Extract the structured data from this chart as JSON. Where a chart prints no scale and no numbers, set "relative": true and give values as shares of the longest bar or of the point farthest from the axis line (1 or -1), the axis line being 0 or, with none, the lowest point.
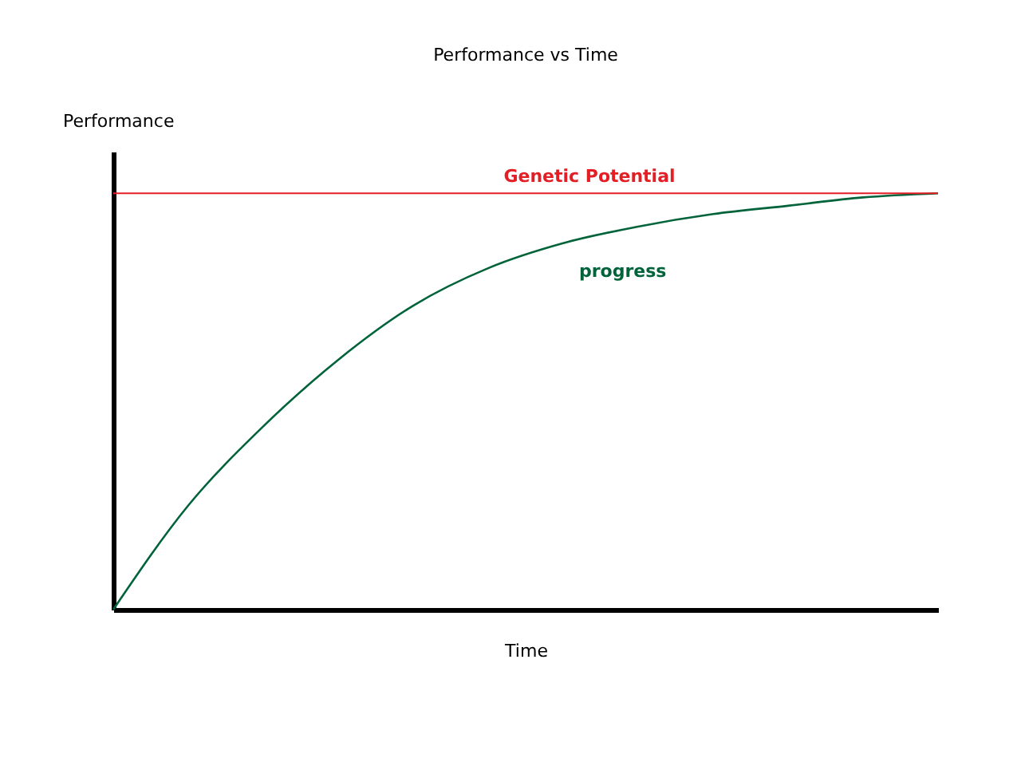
{
  "chart_data": {
    "type": "line",
    "title": "Performance vs Time",
    "xlabel": "Time",
    "ylabel": "Performance",
    "relative": true,
    "categories": [
      null,
      null,
      null,
      null,
      null,
      null,
      null,
      null,
      null,
      null,
      null,
      null
    ],
    "series": [
      {
        "name": "progress",
        "color": "#00633a",
        "values": [
          0,
          0.25,
          0.44,
          0.6,
          0.73,
          0.82,
          0.88,
          0.92,
          0.95,
          0.97,
          0.99,
          1
        ]
      }
    ],
    "ref_lines": [
      {
        "axis": "y",
        "value": 1,
        "label": "Genetic Potential",
        "color": "#e31e24"
      }
    ],
    "marker": "none",
    "line_style": "solid"
  }
}
